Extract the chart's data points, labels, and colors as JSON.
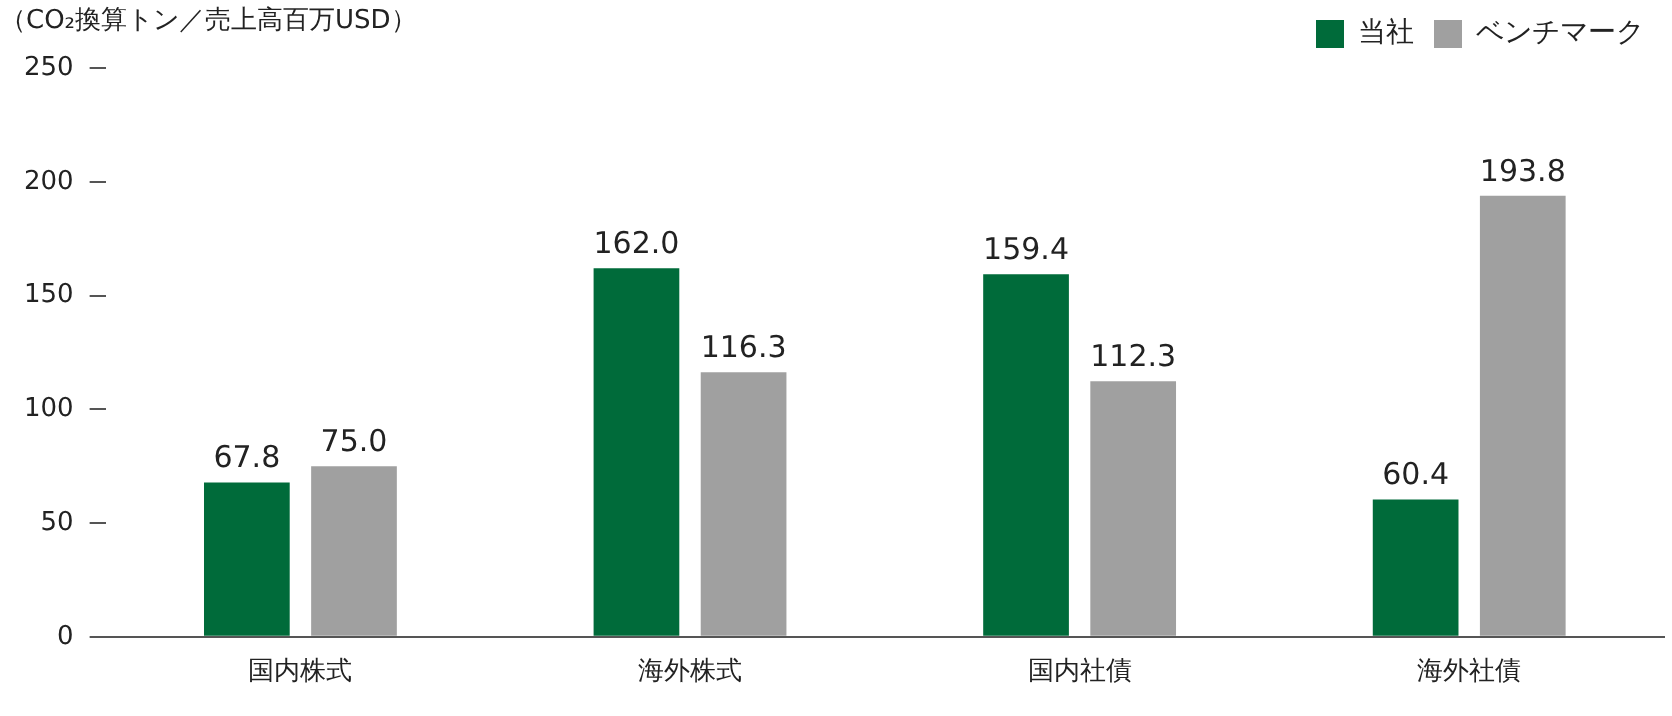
{
  "chart_data": {
    "type": "bar",
    "ylabel": "（CO₂換算トン／売上高百万USD）",
    "categories": [
      "国内株式",
      "海外株式",
      "国内社債",
      "海外社債"
    ],
    "series": [
      {
        "name": "当社",
        "color": "#006b3a",
        "values": [
          67.8,
          162.0,
          159.4,
          60.4
        ],
        "value_labels": [
          "67.8",
          "162.0",
          "159.4",
          "60.4"
        ]
      },
      {
        "name": "ベンチマーク",
        "color": "#a0a0a0",
        "values": [
          75.0,
          116.3,
          112.3,
          193.8
        ],
        "value_labels": [
          "75.0",
          "116.3",
          "112.3",
          "193.8"
        ]
      }
    ],
    "ylim": [
      0,
      250
    ],
    "yticks": [
      0,
      50,
      100,
      150,
      200,
      250
    ],
    "grid": false,
    "legend": "top right"
  }
}
